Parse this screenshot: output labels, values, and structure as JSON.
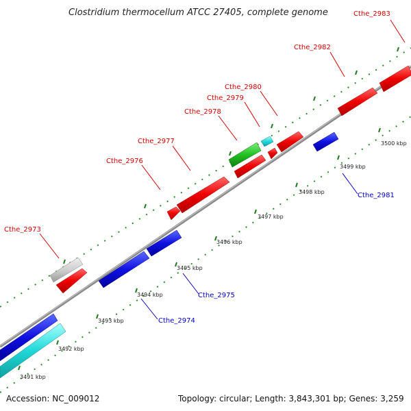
{
  "title": "Clostridium thermocellum ATCC 27405, complete genome",
  "footer": {
    "accession": "Accession: NC_009012",
    "topology": "Topology: circular; Length: 3,843,301 bp; Genes: 3,259"
  },
  "ticks": [
    "3491 kbp",
    "3492 kbp",
    "3493 kbp",
    "3494 kbp",
    "3495 kbp",
    "3496 kbp",
    "3497 kbp",
    "3498 kbp",
    "3499 kbp",
    "3500 kbp"
  ],
  "genes": [
    {
      "name": "Cthe_2973",
      "strand": "forward",
      "color": "#e00000"
    },
    {
      "name": "Cthe_2974",
      "strand": "reverse",
      "color": "#0000cc"
    },
    {
      "name": "Cthe_2975",
      "strand": "reverse",
      "color": "#0000cc"
    },
    {
      "name": "Cthe_2976",
      "strand": "forward",
      "color": "#e00000"
    },
    {
      "name": "Cthe_2977",
      "strand": "forward",
      "color": "#e00000"
    },
    {
      "name": "Cthe_2978",
      "strand": "forward",
      "color": "#e00000"
    },
    {
      "name": "Cthe_2979",
      "strand": "forward",
      "color": "#e00000"
    },
    {
      "name": "Cthe_2980",
      "strand": "forward",
      "color": "#e00000"
    },
    {
      "name": "Cthe_2981",
      "strand": "reverse",
      "color": "#0000cc"
    },
    {
      "name": "Cthe_2982",
      "strand": "forward",
      "color": "#e00000"
    },
    {
      "name": "Cthe_2983",
      "strand": "forward",
      "color": "#e00000"
    }
  ],
  "colors": {
    "forward_label": "#d40000",
    "reverse_label": "#0000c8",
    "tick_dots": "#2a8a2a",
    "backbone": "#8a8a8a"
  }
}
